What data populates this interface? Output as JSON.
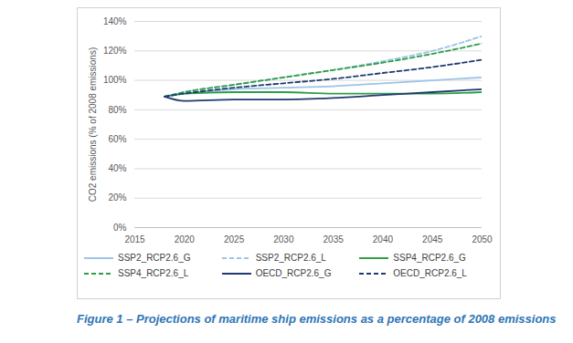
{
  "chart_data": {
    "type": "line",
    "caption": "Figure 1 – Projections of maritime ship emissions as a percentage of 2008 emissions",
    "y_label": "CO2 emissions (% of 2008 emissions)",
    "x": [
      2018,
      2020,
      2025,
      2030,
      2035,
      2040,
      2045,
      2050
    ],
    "series": [
      {
        "name": "SSP2_RCP2.6_G",
        "color": "#9dc3e6",
        "line_style": "solid",
        "values": [
          89,
          91,
          94,
          95,
          96,
          98,
          100,
          102
        ]
      },
      {
        "name": "SSP2_RCP2.6_L",
        "color": "#9dc3e6",
        "line_style": "dashed",
        "values": [
          89,
          92,
          97,
          102,
          107,
          113,
          120,
          130
        ]
      },
      {
        "name": "SSP4_RCP2.6_G",
        "color": "#2e9e48",
        "line_style": "solid",
        "values": [
          89,
          91,
          92,
          92,
          91,
          91,
          91,
          92
        ]
      },
      {
        "name": "SSP4_RCP2.6_L",
        "color": "#2e9e48",
        "line_style": "dashed",
        "values": [
          89,
          92,
          97,
          102,
          107,
          112,
          118,
          125
        ]
      },
      {
        "name": "OECD_RCP2.6_G",
        "color": "#1f3a6e",
        "line_style": "solid",
        "values": [
          89,
          86,
          87,
          87,
          88,
          90,
          92,
          94
        ]
      },
      {
        "name": "OECD_RCP2.6_L",
        "color": "#1f3a6e",
        "line_style": "dashed",
        "values": [
          89,
          91,
          95,
          98,
          101,
          105,
          109,
          114
        ]
      }
    ],
    "xlim": [
      2015,
      2050
    ],
    "xticks": [
      2015,
      2020,
      2025,
      2030,
      2035,
      2040,
      2045,
      2050
    ],
    "ylim": [
      0,
      140
    ],
    "yticks": [
      {
        "value": 0,
        "label": "0%"
      },
      {
        "value": 20,
        "label": "20%"
      },
      {
        "value": 40,
        "label": "40%"
      },
      {
        "value": 60,
        "label": "60%"
      },
      {
        "value": 80,
        "label": "80%"
      },
      {
        "value": 100,
        "label": "100%"
      },
      {
        "value": 120,
        "label": "120%"
      },
      {
        "value": 140,
        "label": "140%"
      }
    ],
    "grid": true,
    "legend": "bottom"
  }
}
